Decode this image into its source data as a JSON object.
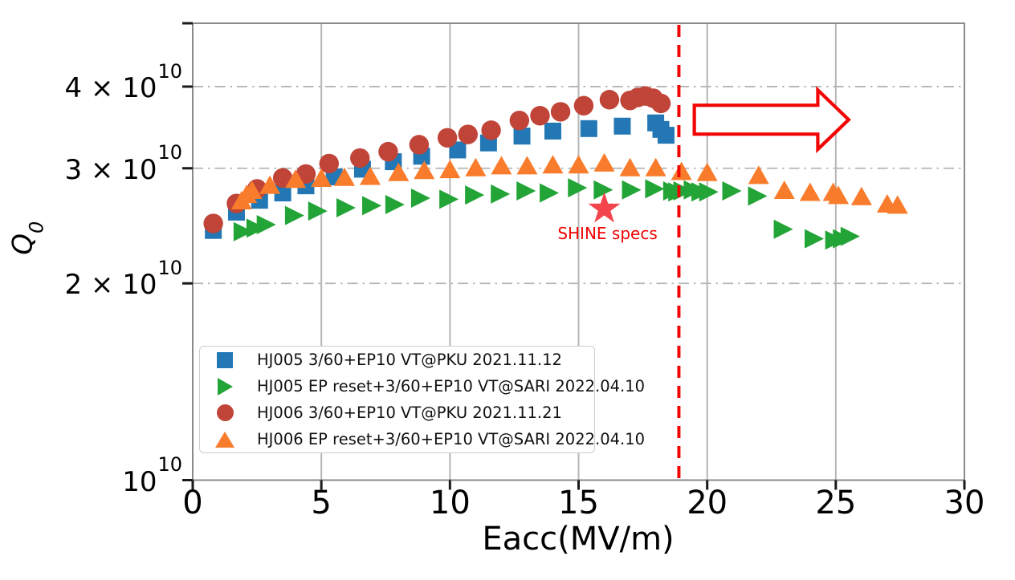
{
  "figure": {
    "background": "#ffffff",
    "text_color": "#000000"
  },
  "chart_data": {
    "type": "scatter",
    "title": "",
    "xlabel": "Eacc(MV/m)",
    "ylabel": {
      "base": "Q",
      "sub": "0"
    },
    "x_axis": {
      "min": 0,
      "max": 30,
      "ticks": [
        0,
        5,
        10,
        15,
        20,
        25,
        30
      ]
    },
    "y_axis": {
      "scale": "log",
      "unit": "1e10",
      "min_q10": 1,
      "max_q10": 5,
      "ticks": [
        {
          "q10": 5,
          "base": "",
          "sup": ""
        },
        {
          "q10": 4,
          "base": "4 × 10",
          "sup": "10"
        },
        {
          "q10": 3,
          "base": "3 × 10",
          "sup": "10"
        },
        {
          "q10": 2,
          "base": "2 × 10",
          "sup": "10"
        },
        {
          "q10": 1,
          "base": "10",
          "sup": "10"
        }
      ]
    },
    "grid": {
      "vertical_at_x": [
        5,
        10,
        15,
        20,
        25
      ],
      "horizontal_at_q10": [
        2,
        3,
        4,
        5
      ],
      "vertical_style": "solid",
      "horizontal_style": "dash-dot",
      "color": "#b5b5b5"
    },
    "legend_position": "lower left",
    "series": [
      {
        "name": "HJ005 3/60+EP10 VT@PKU 2021.11.12",
        "marker": "square",
        "color": "#2277B4",
        "points": [
          [
            0.8,
            2.41
          ],
          [
            1.7,
            2.57
          ],
          [
            2.6,
            2.68
          ],
          [
            3.5,
            2.75
          ],
          [
            4.4,
            2.82
          ],
          [
            5.5,
            2.91
          ],
          [
            6.6,
            2.99
          ],
          [
            7.8,
            3.07
          ],
          [
            8.9,
            3.13
          ],
          [
            10.3,
            3.2
          ],
          [
            11.5,
            3.28
          ],
          [
            12.8,
            3.36
          ],
          [
            14.0,
            3.42
          ],
          [
            15.4,
            3.45
          ],
          [
            16.7,
            3.48
          ],
          [
            18.0,
            3.52
          ],
          [
            18.2,
            3.44
          ],
          [
            18.4,
            3.37
          ]
        ]
      },
      {
        "name": "HJ005 EP reset+3/60+EP10 VT@SARI 2022.04.10",
        "marker": "triangle-right",
        "color": "#23A437",
        "points": [
          [
            1.9,
            2.4
          ],
          [
            2.4,
            2.43
          ],
          [
            2.8,
            2.46
          ],
          [
            3.9,
            2.54
          ],
          [
            4.8,
            2.58
          ],
          [
            5.9,
            2.61
          ],
          [
            6.9,
            2.63
          ],
          [
            7.8,
            2.64
          ],
          [
            8.8,
            2.7
          ],
          [
            9.9,
            2.69
          ],
          [
            10.9,
            2.73
          ],
          [
            11.9,
            2.74
          ],
          [
            12.9,
            2.77
          ],
          [
            13.8,
            2.75
          ],
          [
            14.9,
            2.8
          ],
          [
            15.9,
            2.78
          ],
          [
            17.0,
            2.78
          ],
          [
            17.9,
            2.79
          ],
          [
            18.6,
            2.77
          ],
          [
            18.8,
            2.76
          ],
          [
            19.0,
            2.77
          ],
          [
            19.4,
            2.78
          ],
          [
            19.7,
            2.76
          ],
          [
            20.0,
            2.76
          ],
          [
            20.9,
            2.77
          ],
          [
            21.9,
            2.72
          ],
          [
            22.9,
            2.42
          ],
          [
            24.1,
            2.34
          ],
          [
            24.9,
            2.33
          ],
          [
            25.2,
            2.34
          ],
          [
            25.5,
            2.36
          ]
        ]
      },
      {
        "name": "HJ006 3/60+EP10 VT@PKU 2021.11.21",
        "marker": "circle",
        "color": "#C04438",
        "points": [
          [
            0.8,
            2.47
          ],
          [
            1.7,
            2.65
          ],
          [
            2.5,
            2.79
          ],
          [
            3.5,
            2.9
          ],
          [
            4.4,
            2.94
          ],
          [
            5.3,
            3.05
          ],
          [
            6.5,
            3.11
          ],
          [
            7.6,
            3.18
          ],
          [
            8.8,
            3.26
          ],
          [
            9.9,
            3.34
          ],
          [
            10.7,
            3.38
          ],
          [
            11.6,
            3.43
          ],
          [
            12.7,
            3.55
          ],
          [
            13.5,
            3.61
          ],
          [
            14.3,
            3.66
          ],
          [
            15.2,
            3.74
          ],
          [
            16.2,
            3.82
          ],
          [
            17.0,
            3.81
          ],
          [
            17.3,
            3.85
          ],
          [
            17.6,
            3.87
          ],
          [
            17.9,
            3.84
          ],
          [
            18.2,
            3.77
          ]
        ]
      },
      {
        "name": "HJ006 EP reset+3/60+EP10 VT@SARI 2022.04.10",
        "marker": "triangle-up",
        "color": "#F87C2B",
        "points": [
          [
            1.9,
            2.67
          ],
          [
            2.1,
            2.73
          ],
          [
            2.3,
            2.77
          ],
          [
            3.0,
            2.82
          ],
          [
            4.0,
            2.88
          ],
          [
            5.0,
            2.89
          ],
          [
            5.9,
            2.9
          ],
          [
            6.9,
            2.91
          ],
          [
            8.0,
            2.95
          ],
          [
            9.0,
            2.97
          ],
          [
            10.0,
            2.98
          ],
          [
            11.0,
            3.0
          ],
          [
            12.0,
            3.02
          ],
          [
            13.0,
            3.02
          ],
          [
            14.0,
            3.03
          ],
          [
            15.0,
            3.03
          ],
          [
            16.0,
            3.05
          ],
          [
            17.0,
            3.0
          ],
          [
            18.0,
            3.0
          ],
          [
            19.0,
            2.96
          ],
          [
            20.0,
            2.95
          ],
          [
            22.0,
            2.92
          ],
          [
            23.0,
            2.77
          ],
          [
            24.0,
            2.75
          ],
          [
            24.9,
            2.75
          ],
          [
            25.1,
            2.72
          ],
          [
            26.0,
            2.71
          ],
          [
            27.0,
            2.64
          ],
          [
            27.4,
            2.63
          ]
        ]
      }
    ],
    "annotations": {
      "shine_star": {
        "x": 16.0,
        "q10": 2.6,
        "color": "#F4454D"
      },
      "shine_label": "SHINE specs",
      "shine_label_color": "#F20505",
      "dashed_line": {
        "x": 18.9,
        "color": "#F20505"
      },
      "arrow": {
        "x_tail": 19.5,
        "x_head_base": 24.3,
        "x_tip": 25.5,
        "q10": 3.56,
        "stroke": "#F20505",
        "fill": "#ffffff"
      }
    }
  },
  "legend": {
    "items": [
      {
        "label": "HJ005 3/60+EP10 VT@PKU 2021.11.12",
        "marker": "square",
        "color": "#2277B4"
      },
      {
        "label": "HJ005 EP reset+3/60+EP10 VT@SARI 2022.04.10",
        "marker": "triangle-right",
        "color": "#23A437"
      },
      {
        "label": "HJ006 3/60+EP10 VT@PKU 2021.11.21",
        "marker": "circle",
        "color": "#C04438"
      },
      {
        "label": "HJ006 EP reset+3/60+EP10 VT@SARI 2022.04.10",
        "marker": "triangle-up",
        "color": "#F87C2B"
      }
    ]
  }
}
